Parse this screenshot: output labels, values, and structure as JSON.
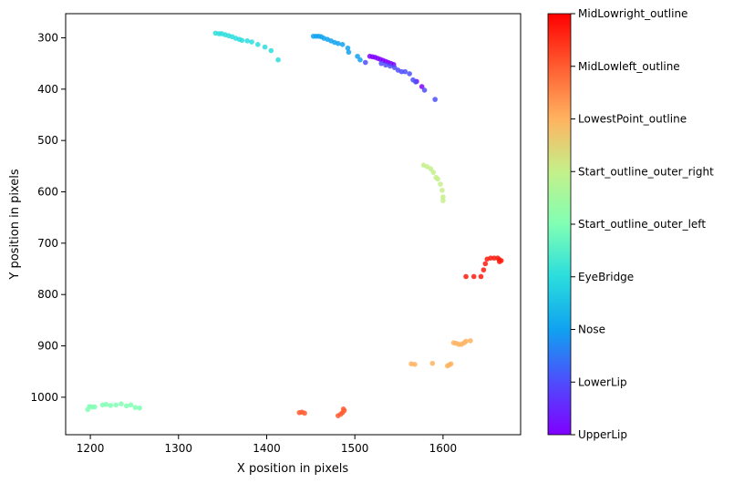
{
  "chart_data": {
    "type": "scatter",
    "xlabel": "X position in pixels",
    "ylabel": "Y position in pixels",
    "xlim": [
      1172,
      1688
    ],
    "ylim": [
      1073,
      253
    ],
    "y_inverted": true,
    "xticks": [
      1200,
      1300,
      1400,
      1500,
      1600
    ],
    "yticks": [
      300,
      400,
      500,
      600,
      700,
      800,
      900,
      1000
    ],
    "grid": false,
    "colormap": "rainbow",
    "colorbar_labels": [
      "UpperLip",
      "LowerLip",
      "Nose",
      "EyeBridge",
      "Start_outline_outer_left",
      "Start_outline_outer_right",
      "LowestPoint_outline",
      "MidLowleft_outline",
      "MidLowright_outline"
    ],
    "series": [
      {
        "name": "UpperLip",
        "color": "#8000ff",
        "points": [
          [
            1517,
            336
          ],
          [
            1520,
            337
          ],
          [
            1523,
            338
          ],
          [
            1526,
            340
          ],
          [
            1529,
            342
          ],
          [
            1532,
            344
          ],
          [
            1535,
            346
          ],
          [
            1538,
            348
          ],
          [
            1541,
            350
          ],
          [
            1544,
            352
          ],
          [
            1570,
            385
          ],
          [
            1576,
            395
          ]
        ]
      },
      {
        "name": "LowerLip",
        "color": "#4e4dfc",
        "points": [
          [
            1530,
            350
          ],
          [
            1535,
            353
          ],
          [
            1540,
            355
          ],
          [
            1545,
            358
          ],
          [
            1549,
            363
          ],
          [
            1553,
            366
          ],
          [
            1557,
            366
          ],
          [
            1562,
            370
          ],
          [
            1566,
            382
          ],
          [
            1569,
            386
          ],
          [
            1579,
            402
          ],
          [
            1591,
            420
          ],
          [
            1512,
            348
          ]
        ]
      },
      {
        "name": "Nose",
        "color": "#10a2f0",
        "points": [
          [
            1453,
            297
          ],
          [
            1456,
            297
          ],
          [
            1459,
            297
          ],
          [
            1462,
            298
          ],
          [
            1465,
            301
          ],
          [
            1469,
            303
          ],
          [
            1473,
            306
          ],
          [
            1477,
            309
          ],
          [
            1481,
            311
          ],
          [
            1486,
            313
          ],
          [
            1492,
            320
          ],
          [
            1493,
            328
          ],
          [
            1503,
            336
          ],
          [
            1506,
            343
          ]
        ]
      },
      {
        "name": "EyeBridge",
        "color": "#2adddd",
        "points": [
          [
            1342,
            291
          ],
          [
            1346,
            292
          ],
          [
            1349,
            292
          ],
          [
            1353,
            294
          ],
          [
            1357,
            296
          ],
          [
            1361,
            298
          ],
          [
            1365,
            301
          ],
          [
            1369,
            303
          ],
          [
            1372,
            305
          ],
          [
            1378,
            306
          ],
          [
            1383,
            308
          ],
          [
            1390,
            313
          ],
          [
            1398,
            318
          ],
          [
            1405,
            325
          ],
          [
            1413,
            343
          ]
        ]
      },
      {
        "name": "Start_outline_outer_left",
        "color": "#80ffb4",
        "points": [
          [
            1197,
            1024
          ],
          [
            1199,
            1018
          ],
          [
            1202,
            1019
          ],
          [
            1205,
            1019
          ],
          [
            1214,
            1015
          ],
          [
            1218,
            1014
          ],
          [
            1223,
            1016
          ],
          [
            1229,
            1015
          ],
          [
            1235,
            1013
          ],
          [
            1241,
            1017
          ],
          [
            1246,
            1015
          ],
          [
            1251,
            1020
          ],
          [
            1256,
            1021
          ]
        ]
      },
      {
        "name": "Start_outline_outer_right",
        "color": "#c4f08a",
        "points": [
          [
            1578,
            548
          ],
          [
            1582,
            551
          ],
          [
            1586,
            555
          ],
          [
            1589,
            562
          ],
          [
            1592,
            572
          ],
          [
            1594,
            575
          ],
          [
            1597,
            585
          ],
          [
            1599,
            597
          ],
          [
            1600,
            610
          ],
          [
            1600,
            617
          ]
        ]
      },
      {
        "name": "LowestPoint_outline",
        "color": "#ffb360",
        "points": [
          [
            1564,
            935
          ],
          [
            1568,
            936
          ],
          [
            1588,
            934
          ],
          [
            1605,
            939
          ],
          [
            1607,
            937
          ],
          [
            1609,
            935
          ],
          [
            1612,
            894
          ],
          [
            1615,
            895
          ],
          [
            1618,
            897
          ],
          [
            1621,
            897
          ],
          [
            1624,
            894
          ],
          [
            1626,
            891
          ],
          [
            1631,
            890
          ]
        ]
      },
      {
        "name": "MidLowleft_outline",
        "color": "#ff5c30",
        "points": [
          [
            1437,
            1030
          ],
          [
            1440,
            1029
          ],
          [
            1443,
            1031
          ],
          [
            1481,
            1036
          ],
          [
            1484,
            1033
          ],
          [
            1486,
            1030
          ],
          [
            1488,
            1026
          ],
          [
            1487,
            1023
          ]
        ]
      },
      {
        "name": "MidLowright_outline",
        "color": "#ff1a0d",
        "points": [
          [
            1626,
            765
          ],
          [
            1635,
            765
          ],
          [
            1643,
            765
          ],
          [
            1646,
            752
          ],
          [
            1648,
            740
          ],
          [
            1650,
            731
          ],
          [
            1654,
            729
          ],
          [
            1658,
            729
          ],
          [
            1662,
            729
          ],
          [
            1664,
            732
          ],
          [
            1666,
            734
          ],
          [
            1664,
            736
          ]
        ]
      }
    ]
  }
}
